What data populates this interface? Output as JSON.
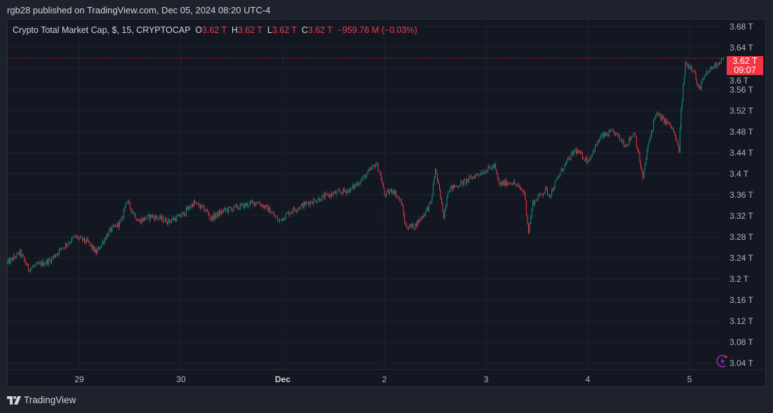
{
  "header": {
    "published": "rgb28 published on TradingView.com, Dec 05, 2024 08:20 UTC-4"
  },
  "legend": {
    "symbol": "Crypto Total Market Cap, $, 15, CRYPTOCAP",
    "o_label": "O",
    "o": "3.62 T",
    "h_label": "H",
    "h": "3.62 T",
    "l_label": "L",
    "l": "3.62 T",
    "c_label": "C",
    "c": "3.62 T",
    "change": "−959.76 M (−0.03%)"
  },
  "last_price": {
    "value": "3.62 T",
    "countdown": "09:07",
    "color": "#f23645"
  },
  "footer": {
    "brand": "TradingView"
  },
  "icons": {
    "logo": "tradingview-logo-icon",
    "alert": "lightning-icon"
  },
  "colors": {
    "up": "#089981",
    "down": "#f23645",
    "background": "#131722"
  },
  "chart_data": {
    "type": "candlestick",
    "interval": "15",
    "y_unit": "T",
    "ylim": [
      3.02,
      3.7
    ],
    "y_ticks": [
      "3.68 T",
      "3.64 T",
      "3.6 T",
      "3.56 T",
      "3.52 T",
      "3.48 T",
      "3.44 T",
      "3.4 T",
      "3.36 T",
      "3.32 T",
      "3.28 T",
      "3.24 T",
      "3.2 T",
      "3.16 T",
      "3.12 T",
      "3.08 T",
      "3.04 T"
    ],
    "y_tick_values": [
      3.68,
      3.64,
      3.6,
      3.56,
      3.52,
      3.48,
      3.44,
      3.4,
      3.36,
      3.32,
      3.28,
      3.24,
      3.2,
      3.16,
      3.12,
      3.08,
      3.04
    ],
    "x_ticks": [
      "29",
      "30",
      "Dec",
      "2",
      "3",
      "4",
      "5"
    ],
    "x_tick_dates": [
      "2024-11-29",
      "2024-11-30",
      "2024-12-01",
      "2024-12-02",
      "2024-12-03",
      "2024-12-04",
      "2024-12-05"
    ],
    "grid": true,
    "approx_closes": [
      [
        "2024-11-28T07:00",
        3.23
      ],
      [
        "2024-11-28T10:00",
        3.25
      ],
      [
        "2024-11-28T12:00",
        3.22
      ],
      [
        "2024-11-28T17:00",
        3.235
      ],
      [
        "2024-11-28T20:00",
        3.26
      ],
      [
        "2024-11-28T23:00",
        3.28
      ],
      [
        "2024-11-29T02:00",
        3.27
      ],
      [
        "2024-11-29T04:00",
        3.25
      ],
      [
        "2024-11-29T07:00",
        3.29
      ],
      [
        "2024-11-29T10:00",
        3.31
      ],
      [
        "2024-11-29T11:00",
        3.35
      ],
      [
        "2024-11-29T14:00",
        3.31
      ],
      [
        "2024-11-29T17:00",
        3.32
      ],
      [
        "2024-11-29T21:00",
        3.31
      ],
      [
        "2024-11-30T00:00",
        3.32
      ],
      [
        "2024-11-30T03:00",
        3.345
      ],
      [
        "2024-11-30T06:00",
        3.33
      ],
      [
        "2024-11-30T07:00",
        3.315
      ],
      [
        "2024-11-30T10:00",
        3.33
      ],
      [
        "2024-11-30T15:00",
        3.34
      ],
      [
        "2024-11-30T18:00",
        3.347
      ],
      [
        "2024-11-30T21:00",
        3.33
      ],
      [
        "2024-11-30T23:00",
        3.31
      ],
      [
        "2024-12-01T02:00",
        3.33
      ],
      [
        "2024-12-01T06:00",
        3.345
      ],
      [
        "2024-12-01T11:00",
        3.36
      ],
      [
        "2024-12-01T16:00",
        3.37
      ],
      [
        "2024-12-01T20:00",
        3.4
      ],
      [
        "2024-12-01T22:00",
        3.42
      ],
      [
        "2024-12-01T23:00",
        3.4
      ],
      [
        "2024-12-02T00:00",
        3.36
      ],
      [
        "2024-12-02T02:00",
        3.37
      ],
      [
        "2024-12-02T04:00",
        3.345
      ],
      [
        "2024-12-02T05:00",
        3.3
      ],
      [
        "2024-12-02T07:00",
        3.3
      ],
      [
        "2024-12-02T09:00",
        3.32
      ],
      [
        "2024-12-02T11:00",
        3.345
      ],
      [
        "2024-12-02T12:00",
        3.41
      ],
      [
        "2024-12-02T13:00",
        3.365
      ],
      [
        "2024-12-02T14:00",
        3.32
      ],
      [
        "2024-12-02T15:00",
        3.37
      ],
      [
        "2024-12-02T19:00",
        3.385
      ],
      [
        "2024-12-02T22:00",
        3.4
      ],
      [
        "2024-12-03T02:00",
        3.415
      ],
      [
        "2024-12-03T03:00",
        3.38
      ],
      [
        "2024-12-03T06:00",
        3.385
      ],
      [
        "2024-12-03T09:00",
        3.365
      ],
      [
        "2024-12-03T10:00",
        3.29
      ],
      [
        "2024-12-03T11:00",
        3.345
      ],
      [
        "2024-12-03T14:00",
        3.37
      ],
      [
        "2024-12-03T15:00",
        3.36
      ],
      [
        "2024-12-03T18:00",
        3.41
      ],
      [
        "2024-12-03T21:00",
        3.445
      ],
      [
        "2024-12-04T00:00",
        3.425
      ],
      [
        "2024-12-04T03:00",
        3.47
      ],
      [
        "2024-12-04T06:00",
        3.48
      ],
      [
        "2024-12-04T09:00",
        3.455
      ],
      [
        "2024-12-04T11:00",
        3.48
      ],
      [
        "2024-12-04T13:00",
        3.39
      ],
      [
        "2024-12-04T14:00",
        3.445
      ],
      [
        "2024-12-04T16:00",
        3.515
      ],
      [
        "2024-12-04T19:00",
        3.495
      ],
      [
        "2024-12-04T20:00",
        3.485
      ],
      [
        "2024-12-04T21:30",
        3.445
      ],
      [
        "2024-12-04T22:00",
        3.52
      ],
      [
        "2024-12-04T23:00",
        3.61
      ],
      [
        "2024-12-05T01:00",
        3.6
      ],
      [
        "2024-12-05T02:00",
        3.56
      ],
      [
        "2024-12-05T04:00",
        3.59
      ],
      [
        "2024-12-05T05:00",
        3.6
      ],
      [
        "2024-12-05T08:00",
        3.62
      ]
    ],
    "last": 3.62
  }
}
